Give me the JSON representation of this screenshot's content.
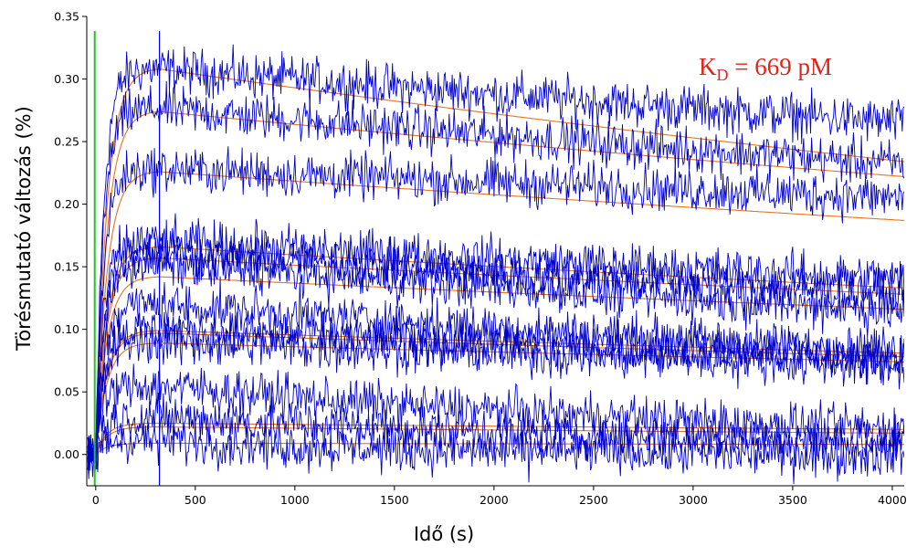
{
  "chart_data": {
    "type": "line",
    "title": "",
    "xlabel": "Idő (s)",
    "ylabel": "Törésmutató változás (%)",
    "xlim": [
      -45,
      4060
    ],
    "ylim": [
      -0.025,
      0.35
    ],
    "xticks": [
      0,
      500,
      1000,
      1500,
      2000,
      2500,
      3000,
      3500,
      4000
    ],
    "xtick_labels": [
      "0",
      "500",
      "1000",
      "1500",
      "2000",
      "2500",
      "3000",
      "3500",
      "4000"
    ],
    "yticks": [
      0.0,
      0.05,
      0.1,
      0.15,
      0.2,
      0.25,
      0.3,
      0.35
    ],
    "ytick_labels": [
      "0.00",
      "0.05",
      "0.10",
      "0.15",
      "0.20",
      "0.25",
      "0.30",
      "0.35"
    ],
    "grid": false,
    "legend": "none",
    "annotation": {
      "prefix": "K",
      "subscript": "D",
      "text": " = 669 pM"
    },
    "association_start_s": 0,
    "dissociation_start_s": 320,
    "marker_lines": [
      {
        "x": -5,
        "color": "#22c322"
      },
      {
        "x": 320,
        "color": "#0000ff"
      }
    ],
    "colors": {
      "measured": "#0000cc",
      "fit": "#e8741c",
      "annotation": "#e2231a"
    },
    "series": [
      {
        "peak": 0.308,
        "end": 0.265,
        "fit_peak": 0.308,
        "fit_end": 0.234
      },
      {
        "peak": 0.276,
        "end": 0.232,
        "fit_peak": 0.274,
        "fit_end": 0.222
      },
      {
        "peak": 0.228,
        "end": 0.205,
        "fit_peak": 0.226,
        "fit_end": 0.187
      },
      {
        "peak": 0.17,
        "end": 0.14,
        "fit_peak": 0.166,
        "fit_end": 0.133
      },
      {
        "peak": 0.162,
        "end": 0.128,
        "fit_peak": 0.157,
        "fit_end": 0.128
      },
      {
        "peak": 0.152,
        "end": 0.115,
        "fit_peak": 0.142,
        "fit_end": 0.116
      },
      {
        "peak": 0.12,
        "end": 0.082,
        "fit_peak": 0.099,
        "fit_end": 0.081
      },
      {
        "peak": 0.1,
        "end": 0.078,
        "fit_peak": 0.097,
        "fit_end": 0.078
      },
      {
        "peak": 0.09,
        "end": 0.072,
        "fit_peak": 0.089,
        "fit_end": 0.074
      },
      {
        "peak": 0.055,
        "end": 0.02,
        "fit_peak": 0.025,
        "fit_end": 0.02
      },
      {
        "peak": 0.03,
        "end": 0.01,
        "fit_peak": 0.022,
        "fit_end": 0.017
      },
      {
        "peak": 0.012,
        "end": 0.0,
        "fit_peak": 0.009,
        "fit_end": 0.008
      }
    ]
  }
}
